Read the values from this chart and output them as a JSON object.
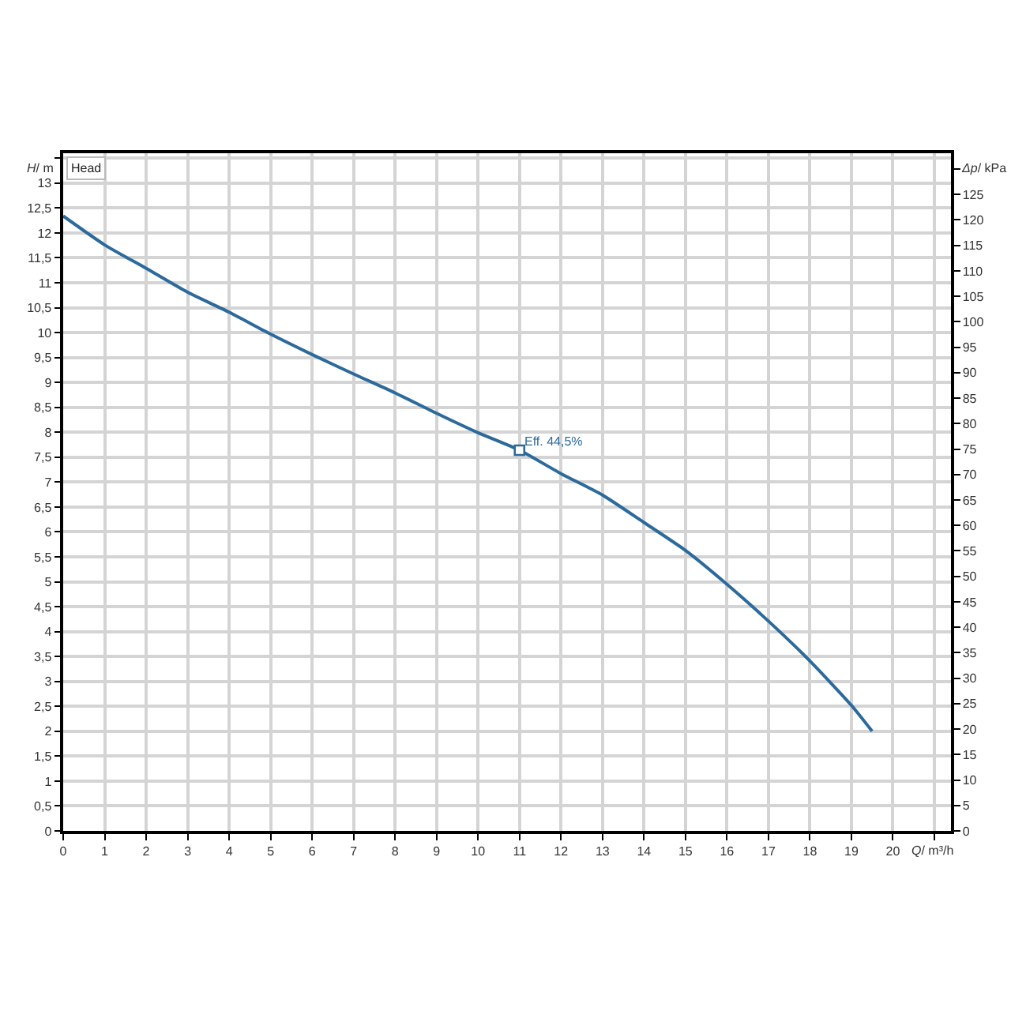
{
  "chart_data": {
    "type": "line",
    "title": "Head",
    "xlabel": "Q/ m³/h",
    "ylabel": "H/ m",
    "y2label": "Δp/ kPa",
    "x": [
      0,
      1,
      2,
      3,
      4,
      5,
      6,
      7,
      8,
      9,
      10,
      11,
      12,
      13,
      14,
      15,
      16,
      17,
      18,
      19,
      19.5
    ],
    "series": [
      {
        "color": "#2c6a9c",
        "values": [
          12.34,
          11.76,
          11.29,
          10.81,
          10.41,
          9.97,
          9.56,
          9.17,
          8.79,
          8.38,
          7.99,
          7.64,
          7.17,
          6.74,
          6.19,
          5.63,
          4.95,
          4.21,
          3.41,
          2.52,
          2.0
        ]
      }
    ],
    "xlim": [
      0,
      21.4
    ],
    "xticks": [
      0,
      1,
      2,
      3,
      4,
      5,
      6,
      7,
      8,
      9,
      10,
      11,
      12,
      13,
      14,
      15,
      16,
      17,
      18,
      19,
      20,
      {
        "value": 21,
        "label": null
      }
    ],
    "ylim": [
      0,
      13.6
    ],
    "yticks": [
      0,
      {
        "value": 0.5,
        "label": "0,5"
      },
      1,
      {
        "value": 1.5,
        "label": "1,5"
      },
      2,
      {
        "value": 2.5,
        "label": "2,5"
      },
      3,
      {
        "value": 3.5,
        "label": "3,5"
      },
      4,
      {
        "value": 4.5,
        "label": "4,5"
      },
      5,
      {
        "value": 5.5,
        "label": "5,5"
      },
      6,
      {
        "value": 6.5,
        "label": "6,5"
      },
      7,
      {
        "value": 7.5,
        "label": "7,5"
      },
      8,
      {
        "value": 8.5,
        "label": "8,5"
      },
      9,
      {
        "value": 9.5,
        "label": "9,5"
      },
      10,
      {
        "value": 10.5,
        "label": "10,5"
      },
      11,
      {
        "value": 11.5,
        "label": "11,5"
      },
      12,
      {
        "value": 12.5,
        "label": "12,5"
      },
      13,
      {
        "value": 13.5,
        "label": null
      }
    ],
    "y2lim": [
      0,
      133.1
    ],
    "y2ticks": [
      0,
      5,
      10,
      15,
      20,
      25,
      30,
      35,
      40,
      45,
      50,
      55,
      60,
      65,
      70,
      75,
      80,
      85,
      90,
      95,
      100,
      105,
      110,
      115,
      120,
      125,
      {
        "value": 130,
        "label": null
      }
    ],
    "annotations": [
      {
        "text": "Eff. 44,5%",
        "x": 11,
        "y": 7.64
      }
    ],
    "grid": true
  }
}
